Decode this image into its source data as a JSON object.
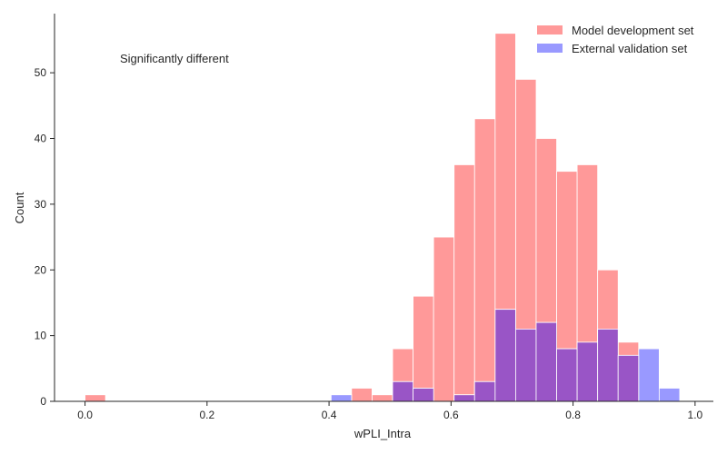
{
  "chart_data": {
    "type": "bar",
    "title": "",
    "xlabel": "wPLI_Intra",
    "ylabel": "Count",
    "xlim": [
      -0.05,
      1.03
    ],
    "ylim": [
      0,
      59
    ],
    "xticks": [
      0.0,
      0.2,
      0.4,
      0.6,
      0.8,
      1.0
    ],
    "xtick_labels": [
      "0.0",
      "0.2",
      "0.4",
      "0.6",
      "0.8",
      "1.0"
    ],
    "yticks": [
      0,
      10,
      20,
      30,
      40,
      50
    ],
    "ytick_labels": [
      "0",
      "10",
      "20",
      "30",
      "40",
      "50"
    ],
    "bin_width": 0.0336,
    "grid": false,
    "legend_position": "top-right",
    "annotation": "Significantly different",
    "series": [
      {
        "name": "Model development set",
        "color": "#ff9999",
        "bin_starts": [
          0.0,
          0.4369,
          0.4706,
          0.5042,
          0.5378,
          0.5714,
          0.605,
          0.6386,
          0.6723,
          0.7059,
          0.7395,
          0.7731,
          0.8067,
          0.8403,
          0.8739
        ],
        "values": [
          1,
          2,
          1,
          8,
          16,
          25,
          36,
          43,
          56,
          49,
          40,
          35,
          36,
          20,
          9
        ]
      },
      {
        "name": "External validation set",
        "color": "#9999ff",
        "bin_starts": [
          0.4034,
          0.5042,
          0.5378,
          0.605,
          0.6386,
          0.6723,
          0.7059,
          0.7395,
          0.7731,
          0.8067,
          0.8403,
          0.8739,
          0.9076,
          0.9412
        ],
        "values": [
          1,
          3,
          2,
          1,
          3,
          14,
          11,
          12,
          8,
          9,
          11,
          7,
          8,
          2
        ]
      }
    ]
  }
}
